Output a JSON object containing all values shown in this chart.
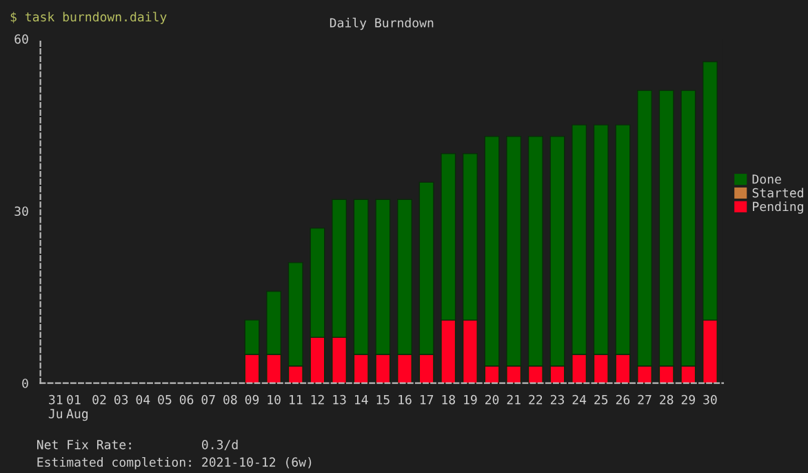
{
  "chart_data": {
    "type": "bar",
    "title": "Daily Burndown",
    "stacked": true,
    "categories": [
      "31\nJu",
      "01\nAug",
      "02",
      "03",
      "04",
      "05",
      "06",
      "07",
      "08",
      "09",
      "10",
      "11",
      "12",
      "13",
      "14",
      "15",
      "16",
      "17",
      "18",
      "19",
      "20",
      "21",
      "22",
      "23",
      "24",
      "25",
      "26",
      "27",
      "28",
      "29",
      "30"
    ],
    "series": [
      {
        "name": "Pending",
        "color": "#ff0022",
        "values": [
          null,
          null,
          null,
          null,
          null,
          null,
          null,
          null,
          null,
          5,
          5,
          3,
          8,
          8,
          5,
          5,
          5,
          5,
          11,
          11,
          3,
          3,
          3,
          3,
          5,
          5,
          5,
          3,
          3,
          3,
          11
        ]
      },
      {
        "name": "Started",
        "color": "#c87c3c",
        "values": [
          null,
          null,
          null,
          null,
          null,
          null,
          null,
          null,
          null,
          null,
          null,
          null,
          null,
          null,
          null,
          null,
          null,
          null,
          null,
          null,
          null,
          null,
          null,
          null,
          null,
          null,
          null,
          null,
          null,
          null,
          null
        ]
      },
      {
        "name": "Done",
        "color": "#006400",
        "values": [
          null,
          null,
          null,
          null,
          null,
          null,
          null,
          null,
          null,
          6,
          11,
          18,
          19,
          24,
          27,
          27,
          27,
          30,
          29,
          29,
          40,
          40,
          40,
          40,
          40,
          40,
          40,
          48,
          48,
          48,
          45
        ]
      }
    ],
    "ylim": [
      0,
      60
    ],
    "yticks": [
      0,
      30,
      60
    ],
    "legend": "right",
    "annotations": [
      "$ task burndown.daily",
      "Net Fix Rate:         0.3/d",
      "Estimated completion: 2021-10-12 (6w)"
    ]
  }
}
